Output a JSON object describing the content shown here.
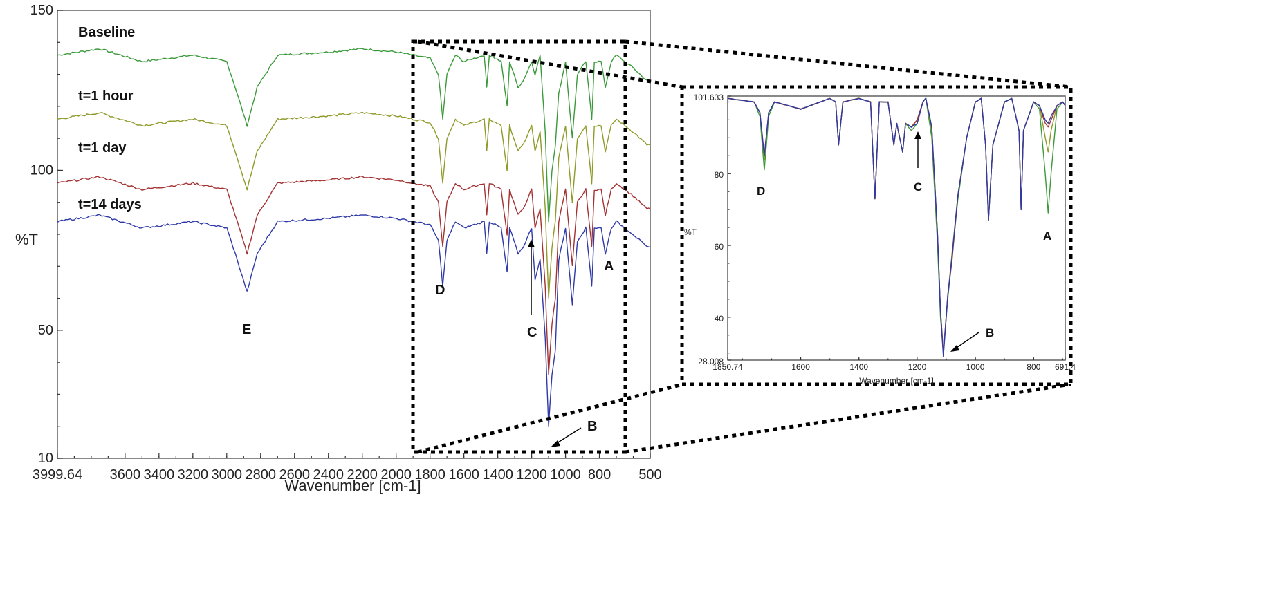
{
  "chart_data": [
    {
      "type": "line",
      "title": "",
      "xlabel": "Wavenumber [cm-1]",
      "ylabel": "%T",
      "xlim": [
        3999.64,
        500
      ],
      "ylim": [
        10,
        150
      ],
      "x_ticks": [
        "3999.64",
        "3600",
        "3400",
        "3200",
        "3000",
        "2800",
        "2600",
        "2400",
        "2200",
        "2000",
        "1800",
        "1600",
        "1400",
        "1200",
        "1000",
        "800",
        "500"
      ],
      "y_ticks": [
        "150",
        "100",
        "50",
        "10"
      ],
      "series": [
        {
          "name": "Baseline",
          "color": "#3a9a3a",
          "offset": 0,
          "points": [
            [
              3999.64,
              136
            ],
            [
              3750,
              138
            ],
            [
              3500,
              134
            ],
            [
              3200,
              136
            ],
            [
              3000,
              134
            ],
            [
              2950,
              126
            ],
            [
              2880,
              114
            ],
            [
              2820,
              126
            ],
            [
              2700,
              136
            ],
            [
              2400,
              137
            ],
            [
              2200,
              138
            ],
            [
              2000,
              137
            ],
            [
              1900,
              136
            ],
            [
              1800,
              135
            ],
            [
              1750,
              130
            ],
            [
              1725,
              116
            ],
            [
              1700,
              130
            ],
            [
              1650,
              136
            ],
            [
              1600,
              134
            ],
            [
              1480,
              136
            ],
            [
              1465,
              126
            ],
            [
              1450,
              136
            ],
            [
              1380,
              134
            ],
            [
              1345,
              120
            ],
            [
              1330,
              134
            ],
            [
              1280,
              126
            ],
            [
              1250,
              128
            ],
            [
              1200,
              134
            ],
            [
              1180,
              130
            ],
            [
              1150,
              136
            ],
            [
              1120,
              112
            ],
            [
              1100,
              84
            ],
            [
              1080,
              100
            ],
            [
              1060,
              108
            ],
            [
              1040,
              124
            ],
            [
              1000,
              134
            ],
            [
              960,
              110
            ],
            [
              930,
              130
            ],
            [
              880,
              134
            ],
            [
              845,
              116
            ],
            [
              830,
              134
            ],
            [
              790,
              134
            ],
            [
              765,
              126
            ],
            [
              730,
              134
            ],
            [
              700,
              136
            ],
            [
              600,
              132
            ],
            [
              520,
              128
            ],
            [
              500,
              128
            ]
          ]
        },
        {
          "name": "t=1 hour",
          "color": "#8f9a28",
          "offset": -20
        },
        {
          "name": "t=1 day",
          "color": "#a33232",
          "offset": -40
        },
        {
          "name": "t=14 days",
          "color": "#2f3aa8",
          "offset": -52
        }
      ],
      "annotations": [
        "A",
        "B",
        "C",
        "D",
        "E"
      ]
    },
    {
      "type": "line",
      "title": "",
      "xlabel": "Wavenumber [cm-1]",
      "ylabel": "%T",
      "xlim": [
        1850.74,
        691.4
      ],
      "ylim": [
        28.008,
        101.633
      ],
      "x_ticks": [
        "1850.74",
        "1600",
        "1400",
        "1200",
        "1000",
        "800",
        "691.4"
      ],
      "y_ticks": [
        "101.633",
        "80",
        "60",
        "40",
        "28.008"
      ],
      "series": [
        {
          "name": "",
          "color": "#3a9a3a",
          "points": [
            [
              1850.74,
              101
            ],
            [
              1760,
              100
            ],
            [
              1740,
              96
            ],
            [
              1725,
              81
            ],
            [
              1710,
              96
            ],
            [
              1690,
              100
            ],
            [
              1600,
              98
            ],
            [
              1500,
              101
            ],
            [
              1480,
              100
            ],
            [
              1470,
              88
            ],
            [
              1455,
              100
            ],
            [
              1400,
              101
            ],
            [
              1360,
              100
            ],
            [
              1345,
              73
            ],
            [
              1330,
              100
            ],
            [
              1300,
              100
            ],
            [
              1280,
              88
            ],
            [
              1270,
              94
            ],
            [
              1250,
              86
            ],
            [
              1240,
              94
            ],
            [
              1220,
              92
            ],
            [
              1200,
              94
            ],
            [
              1180,
              100
            ],
            [
              1170,
              101
            ],
            [
              1150,
              90
            ],
            [
              1130,
              60
            ],
            [
              1120,
              40
            ],
            [
              1110,
              30
            ],
            [
              1095,
              45
            ],
            [
              1080,
              57
            ],
            [
              1060,
              73
            ],
            [
              1030,
              90
            ],
            [
              1000,
              100
            ],
            [
              980,
              101
            ],
            [
              965,
              88
            ],
            [
              955,
              68
            ],
            [
              940,
              88
            ],
            [
              900,
              100
            ],
            [
              875,
              101
            ],
            [
              850,
              92
            ],
            [
              843,
              70
            ],
            [
              835,
              92
            ],
            [
              800,
              100
            ],
            [
              780,
              98
            ],
            [
              760,
              80
            ],
            [
              750,
              69
            ],
            [
              740,
              80
            ],
            [
              720,
              98
            ],
            [
              700,
              100
            ],
            [
              691.4,
              99
            ]
          ]
        },
        {
          "name": "",
          "color": "#8f9a28",
          "points": [
            [
              1850.74,
              101
            ],
            [
              1760,
              100
            ],
            [
              1740,
              97
            ],
            [
              1725,
              84
            ],
            [
              1710,
              97
            ],
            [
              1690,
              100
            ],
            [
              1600,
              98
            ],
            [
              1500,
              101
            ],
            [
              1480,
              100
            ],
            [
              1470,
              88
            ],
            [
              1455,
              100
            ],
            [
              1400,
              101
            ],
            [
              1360,
              100
            ],
            [
              1345,
              73
            ],
            [
              1330,
              100
            ],
            [
              1300,
              100
            ],
            [
              1280,
              88
            ],
            [
              1270,
              94
            ],
            [
              1250,
              86
            ],
            [
              1240,
              94
            ],
            [
              1220,
              93
            ],
            [
              1200,
              95
            ],
            [
              1180,
              100
            ],
            [
              1170,
              101
            ],
            [
              1150,
              92
            ],
            [
              1130,
              62
            ],
            [
              1120,
              42
            ],
            [
              1110,
              30
            ],
            [
              1095,
              46
            ],
            [
              1080,
              58
            ],
            [
              1060,
              74
            ],
            [
              1030,
              90
            ],
            [
              1000,
              100
            ],
            [
              980,
              101
            ],
            [
              965,
              88
            ],
            [
              955,
              67
            ],
            [
              940,
              88
            ],
            [
              900,
              100
            ],
            [
              875,
              101
            ],
            [
              850,
              92
            ],
            [
              843,
              70
            ],
            [
              835,
              92
            ],
            [
              800,
              100
            ],
            [
              780,
              99
            ],
            [
              760,
              90
            ],
            [
              750,
              86
            ],
            [
              740,
              92
            ],
            [
              720,
              99
            ],
            [
              700,
              100
            ],
            [
              691.4,
              99
            ]
          ]
        },
        {
          "name": "",
          "color": "#a33232",
          "points": [
            [
              1850.74,
              101
            ],
            [
              1760,
              100
            ],
            [
              1740,
              97
            ],
            [
              1725,
              85
            ],
            [
              1710,
              97
            ],
            [
              1690,
              100
            ],
            [
              1600,
              98
            ],
            [
              1500,
              101
            ],
            [
              1480,
              100
            ],
            [
              1470,
              88
            ],
            [
              1455,
              100
            ],
            [
              1400,
              101
            ],
            [
              1360,
              100
            ],
            [
              1345,
              73
            ],
            [
              1330,
              100
            ],
            [
              1300,
              100
            ],
            [
              1280,
              88
            ],
            [
              1270,
              94
            ],
            [
              1250,
              86
            ],
            [
              1240,
              94
            ],
            [
              1220,
              93
            ],
            [
              1200,
              95
            ],
            [
              1180,
              100
            ],
            [
              1170,
              101
            ],
            [
              1150,
              93
            ],
            [
              1130,
              63
            ],
            [
              1120,
              42
            ],
            [
              1110,
              30
            ],
            [
              1095,
              46
            ],
            [
              1080,
              56
            ],
            [
              1060,
              74
            ],
            [
              1030,
              90
            ],
            [
              1000,
              100
            ],
            [
              980,
              101
            ],
            [
              965,
              88
            ],
            [
              955,
              67
            ],
            [
              940,
              88
            ],
            [
              900,
              100
            ],
            [
              875,
              101
            ],
            [
              850,
              92
            ],
            [
              843,
              70
            ],
            [
              835,
              92
            ],
            [
              800,
              100
            ],
            [
              780,
              99
            ],
            [
              760,
              94
            ],
            [
              750,
              93
            ],
            [
              740,
              95
            ],
            [
              720,
              99
            ],
            [
              700,
              100
            ],
            [
              691.4,
              99
            ]
          ]
        },
        {
          "name": "",
          "color": "#2f3aa8",
          "points": [
            [
              1850.74,
              101
            ],
            [
              1760,
              100
            ],
            [
              1740,
              97
            ],
            [
              1725,
              85
            ],
            [
              1710,
              97
            ],
            [
              1690,
              100
            ],
            [
              1600,
              98
            ],
            [
              1500,
              101
            ],
            [
              1480,
              100
            ],
            [
              1470,
              88
            ],
            [
              1455,
              100
            ],
            [
              1400,
              101
            ],
            [
              1360,
              100
            ],
            [
              1345,
              73
            ],
            [
              1330,
              100
            ],
            [
              1300,
              100
            ],
            [
              1280,
              88
            ],
            [
              1270,
              94
            ],
            [
              1250,
              86
            ],
            [
              1240,
              94
            ],
            [
              1220,
              93
            ],
            [
              1200,
              94
            ],
            [
              1180,
              100
            ],
            [
              1170,
              101
            ],
            [
              1150,
              93
            ],
            [
              1130,
              63
            ],
            [
              1120,
              42
            ],
            [
              1110,
              29
            ],
            [
              1095,
              46
            ],
            [
              1080,
              57
            ],
            [
              1060,
              74
            ],
            [
              1030,
              90
            ],
            [
              1000,
              100
            ],
            [
              980,
              101
            ],
            [
              965,
              88
            ],
            [
              955,
              67
            ],
            [
              940,
              88
            ],
            [
              900,
              100
            ],
            [
              875,
              101
            ],
            [
              850,
              92
            ],
            [
              843,
              70
            ],
            [
              835,
              92
            ],
            [
              800,
              100
            ],
            [
              780,
              99
            ],
            [
              760,
              95
            ],
            [
              750,
              94
            ],
            [
              740,
              96
            ],
            [
              720,
              99
            ],
            [
              700,
              100
            ],
            [
              691.4,
              99
            ]
          ]
        }
      ],
      "annotations": [
        "A",
        "B",
        "C",
        "D"
      ]
    }
  ]
}
